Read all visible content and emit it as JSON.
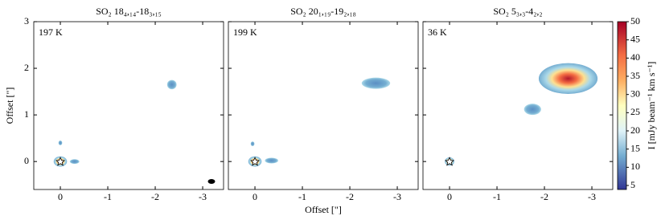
{
  "chart_data": [
    {
      "type": "image",
      "title": "SO₂ 18₄,₁₄-18₃,₁₅",
      "annotation": "197 K",
      "ylabel": "Offset [\"]",
      "xlim": [
        0.56,
        -3.44
      ],
      "ylim": [
        -0.6,
        3
      ],
      "xticks": [
        0,
        -1,
        -2,
        -3
      ],
      "yticks": [
        0,
        1,
        2,
        3
      ]
    },
    {
      "type": "image",
      "title": "SO₂ 20₁,₁₉-19₂,₁₈",
      "annotation": "199 K",
      "xlabel": "Offset [\"]",
      "xlim": [
        0.56,
        -3.44
      ],
      "ylim": [
        -0.6,
        3
      ],
      "xticks": [
        0,
        -1,
        -2,
        -3
      ]
    },
    {
      "type": "image",
      "title": "SO₂ 5₃,₃-4₂,₂",
      "annotation": "36 K",
      "xlim": [
        0.56,
        -3.44
      ],
      "ylim": [
        -0.6,
        3
      ],
      "xticks": [
        0,
        -1,
        -2,
        -3
      ],
      "colorbar": {
        "label": "I [mJy beam⁻¹ km s⁻¹]",
        "lim": [
          3.9,
          50
        ],
        "ticks": [
          5,
          10,
          15,
          20,
          25,
          30,
          35,
          40,
          45,
          50
        ]
      }
    }
  ]
}
